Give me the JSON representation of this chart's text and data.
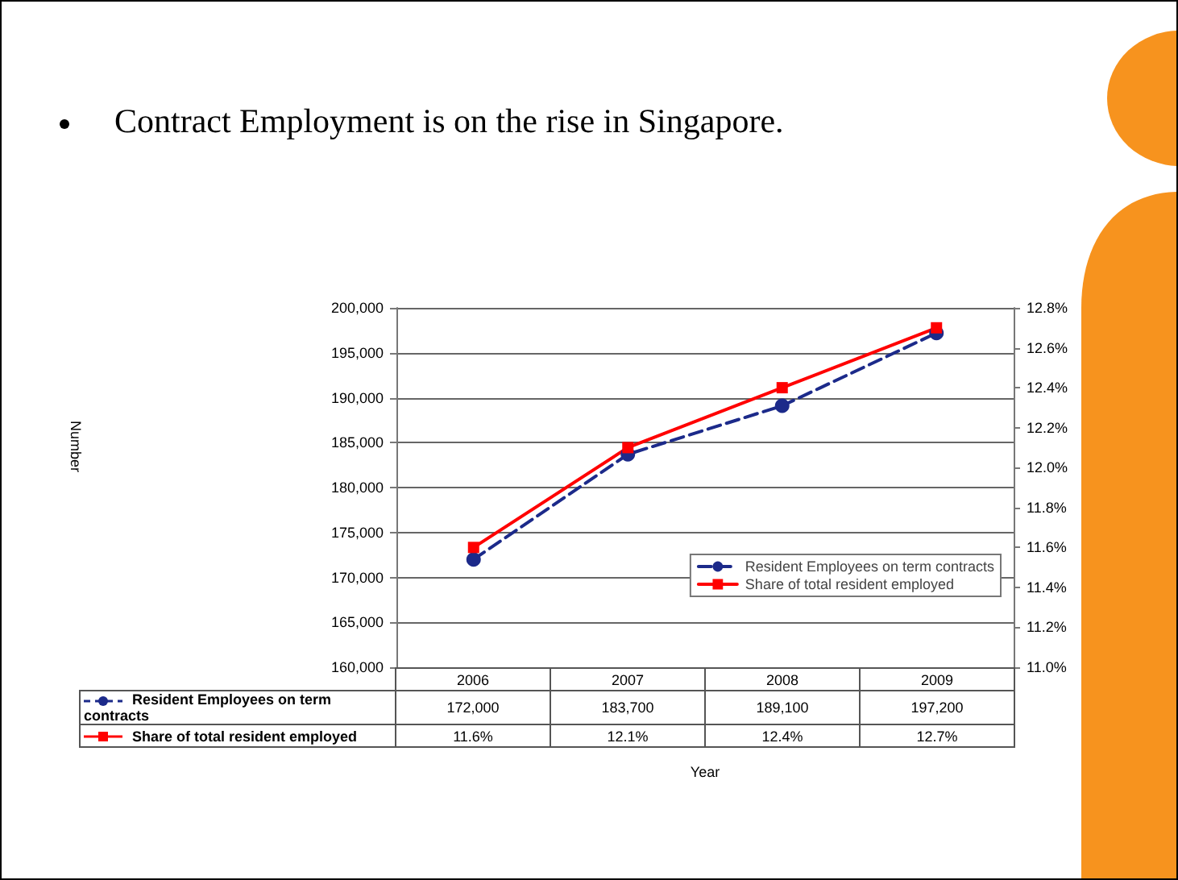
{
  "chart_data": {
    "type": "line",
    "title": "Contract Employment is on the rise in Singapore.",
    "annotations": [
      "Year",
      "Number"
    ],
    "categories": [
      "2006",
      "2007",
      "2008",
      "2009"
    ],
    "series": [
      {
        "name": "Resident Employees on term contracts",
        "color": "#1c2a8a",
        "values": [
          172000,
          183700,
          189100,
          197200
        ],
        "marker": "circle",
        "line_style": "dashed",
        "value_labels": [
          "172,000",
          "183,700",
          "189,100",
          "197,200"
        ]
      },
      {
        "name": "Share of total resident employed",
        "color": "#ff0000",
        "values": [
          11.6,
          12.1,
          12.4,
          12.7
        ],
        "marker": "square",
        "line_style": "solid",
        "axis": "y2",
        "value_labels": [
          "11.6%",
          "12.1%",
          "12.4%",
          "12.7%"
        ]
      }
    ],
    "ylim": [
      160000,
      200000
    ],
    "yticks": [
      {
        "value": 160000,
        "label": "160,000"
      },
      {
        "value": 165000,
        "label": "165,000"
      },
      {
        "value": 170000,
        "label": "170,000"
      },
      {
        "value": 175000,
        "label": "175,000"
      },
      {
        "value": 180000,
        "label": "180,000"
      },
      {
        "value": 185000,
        "label": "185,000"
      },
      {
        "value": 190000,
        "label": "190,000"
      },
      {
        "value": 195000,
        "label": "195,000"
      },
      {
        "value": 200000,
        "label": "200,000"
      }
    ],
    "y2lim": [
      11.0,
      12.8
    ],
    "y2ticks": [
      {
        "value": 11.0,
        "label": "11.0%"
      },
      {
        "value": 11.2,
        "label": "11.2%"
      },
      {
        "value": 11.4,
        "label": "11.4%"
      },
      {
        "value": 11.6,
        "label": "11.6%"
      },
      {
        "value": 11.8,
        "label": "11.8%"
      },
      {
        "value": 12.0,
        "label": "12.0%"
      },
      {
        "value": 12.2,
        "label": "12.2%"
      },
      {
        "value": 12.4,
        "label": "12.4%"
      },
      {
        "value": 12.6,
        "label": "12.6%"
      },
      {
        "value": 12.8,
        "label": "12.8%"
      }
    ],
    "grid": "y",
    "legend": "bottom right",
    "data_labels": false
  }
}
